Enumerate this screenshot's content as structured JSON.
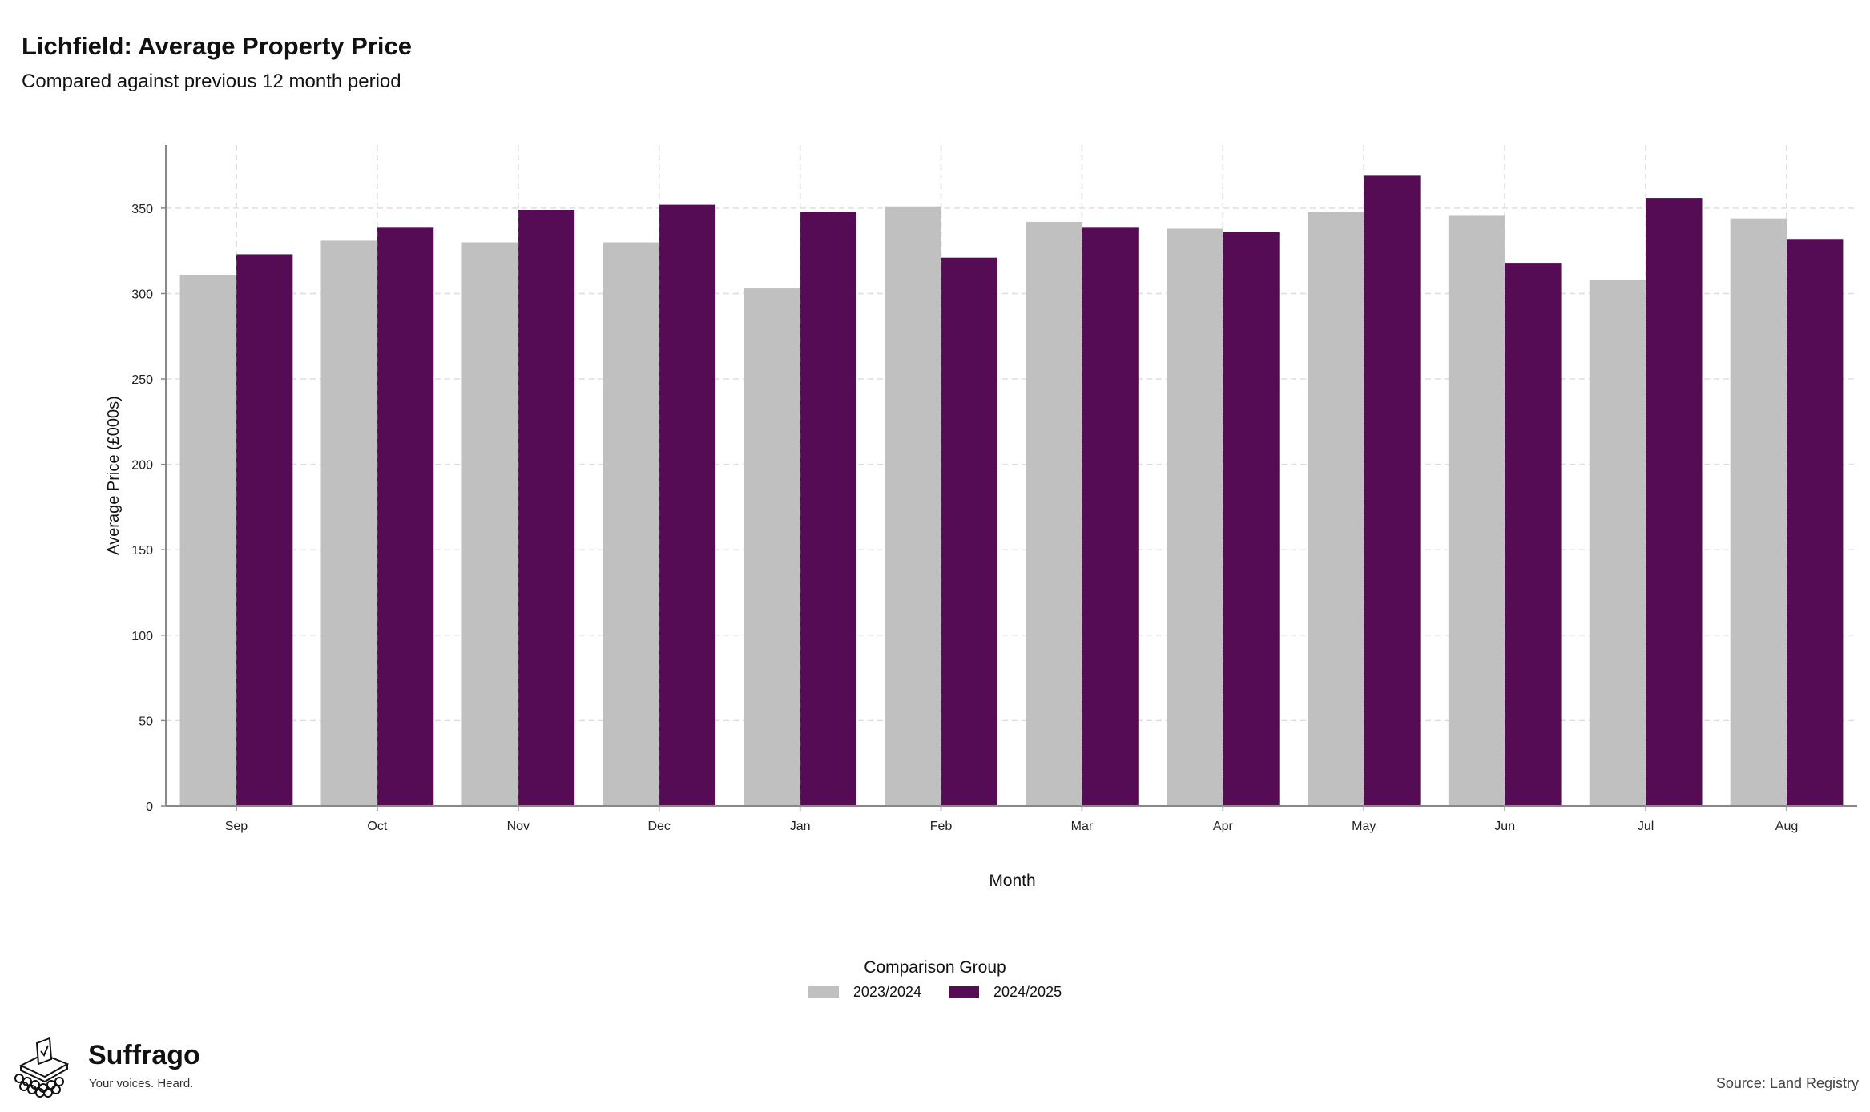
{
  "header": {
    "title": "Lichfield: Average Property Price",
    "subtitle": "Compared against previous 12 month period"
  },
  "legend": {
    "title": "Comparison Group"
  },
  "branding": {
    "name": "Suffrago",
    "tagline": "Your voices. Heard."
  },
  "footer": {
    "source": "Source: Land Registry"
  },
  "colors": {
    "series_2023": "#c0c0c0",
    "series_2024": "#560c54",
    "grid": "#dddddd",
    "axis": "#888888"
  },
  "chart_data": {
    "type": "bar",
    "xlabel": "Month",
    "ylabel": "Average Price (£000s)",
    "ylim": [
      0,
      387
    ],
    "yticks": [
      0,
      50,
      100,
      150,
      200,
      250,
      300,
      350
    ],
    "grid": true,
    "legend_position": "bottom-center",
    "categories": [
      "Sep",
      "Oct",
      "Nov",
      "Dec",
      "Jan",
      "Feb",
      "Mar",
      "Apr",
      "May",
      "Jun",
      "Jul",
      "Aug"
    ],
    "series": [
      {
        "name": "2023/2024",
        "color": "#c0c0c0",
        "values": [
          311,
          331,
          330,
          330,
          303,
          351,
          342,
          338,
          348,
          346,
          308,
          344
        ]
      },
      {
        "name": "2024/2025",
        "color": "#560c54",
        "values": [
          323,
          339,
          349,
          352,
          348,
          321,
          339,
          336,
          369,
          318,
          356,
          332
        ]
      }
    ]
  }
}
